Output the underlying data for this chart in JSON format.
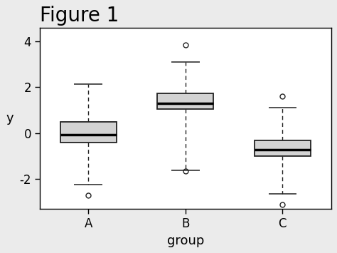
{
  "title": "Figure 1",
  "xlabel": "group",
  "ylabel": "y",
  "figure_bg_color": "#ebebeb",
  "plot_bg_color": "#ffffff",
  "box_facecolor": "#d3d3d3",
  "box_edgecolor": "#222222",
  "whisker_color": "#222222",
  "median_color": "#000000",
  "outlier_edgecolor": "#222222",
  "groups": [
    "A",
    "B",
    "C"
  ],
  "group_positions": [
    1,
    2,
    3
  ],
  "ylim": [
    -3.3,
    4.6
  ],
  "yticks": [
    -2,
    0,
    2,
    4
  ],
  "title_fontsize": 20,
  "label_fontsize": 13,
  "tick_fontsize": 12,
  "box_width": 0.58,
  "cap_ratio": 0.5,
  "boxes": [
    {
      "q1": -0.4,
      "median": -0.05,
      "q3": 0.5,
      "whisker_low": -2.25,
      "whisker_high": 2.15,
      "outliers": [
        -2.7
      ]
    },
    {
      "q1": 1.05,
      "median": 1.3,
      "q3": 1.75,
      "whisker_low": -1.6,
      "whisker_high": 3.1,
      "outliers": [
        3.85,
        -1.65
      ]
    },
    {
      "q1": -1.0,
      "median": -0.7,
      "q3": -0.3,
      "whisker_low": -2.65,
      "whisker_high": 1.1,
      "outliers": [
        1.6,
        -3.1
      ]
    }
  ]
}
